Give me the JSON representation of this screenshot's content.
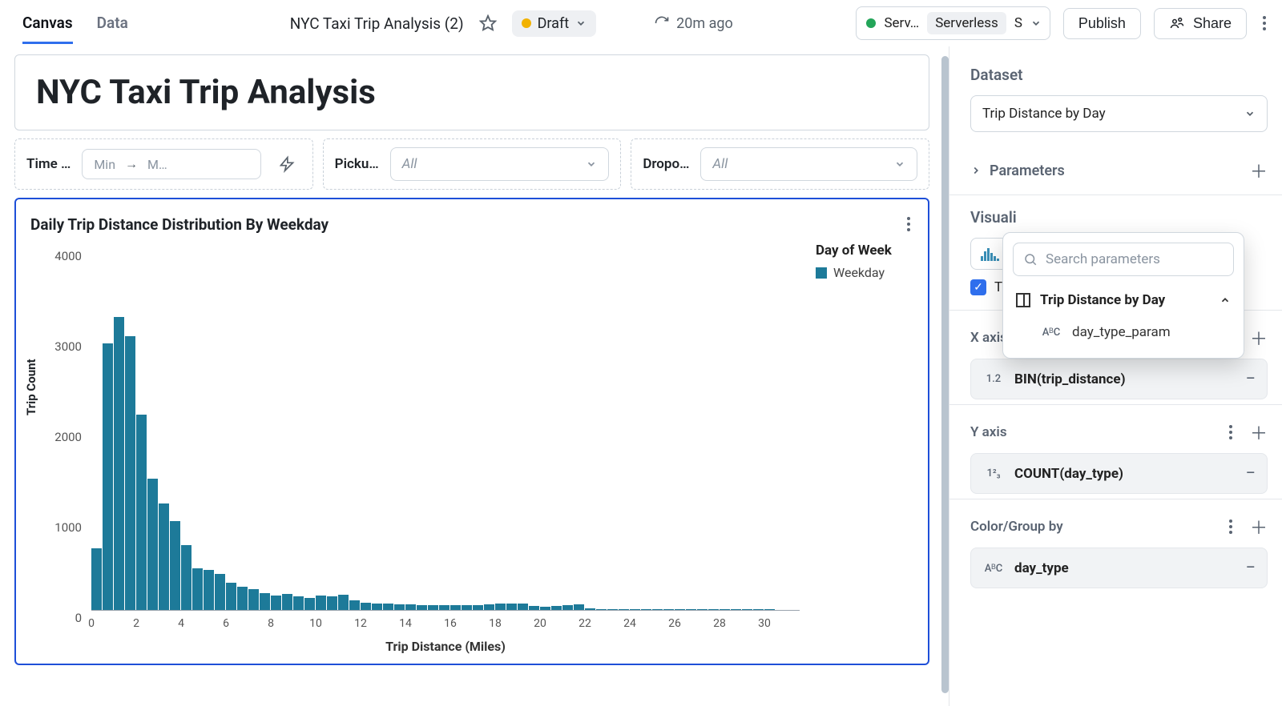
{
  "topbar": {
    "tabs": {
      "canvas": "Canvas",
      "data": "Data"
    },
    "doc_title": "NYC Taxi Trip Analysis (2)",
    "draft_label": "Draft",
    "refresh_ago": "20m ago",
    "env_prefix": "Serv…",
    "env_tag": "Serverless",
    "env_size": "S",
    "publish": "Publish",
    "share": "Share"
  },
  "canvas": {
    "page_title": "NYC Taxi Trip Analysis",
    "filters": {
      "time": {
        "label": "Time …",
        "min": "Min",
        "max": "M…"
      },
      "pickup": {
        "label": "Picku…",
        "value": "All"
      },
      "dropoff": {
        "label": "Dropo…",
        "value": "All"
      }
    },
    "chart": {
      "type": "histogram",
      "title": "Daily Trip Distance Distribution By Weekday",
      "y_label": "Trip Count",
      "x_label": "Trip Distance (Miles)",
      "legend_title": "Day of Week",
      "legend_item": "Weekday",
      "bar_color": "#1d7a99",
      "background_color": "#ffffff",
      "ylim": [
        0,
        4000
      ],
      "y_ticks": [
        0,
        1000,
        2000,
        3000,
        4000
      ],
      "xlim": [
        0,
        30.5
      ],
      "x_tick_step": 2,
      "x_ticks": [
        0,
        2,
        4,
        6,
        8,
        10,
        12,
        14,
        16,
        18,
        20,
        22,
        24,
        26,
        28,
        30
      ],
      "bin_width": 0.5,
      "values": [
        680,
        2950,
        3240,
        3030,
        2160,
        1450,
        1180,
        980,
        720,
        460,
        440,
        400,
        300,
        260,
        230,
        190,
        160,
        175,
        150,
        130,
        160,
        155,
        170,
        110,
        80,
        70,
        70,
        60,
        60,
        55,
        50,
        55,
        50,
        55,
        50,
        65,
        75,
        70,
        75,
        40,
        35,
        40,
        55,
        60,
        15,
        10,
        8,
        8,
        8,
        6,
        5,
        5,
        4,
        4,
        4,
        3,
        3,
        3,
        3,
        2,
        2
      ]
    }
  },
  "sidebar": {
    "dataset_heading": "Dataset",
    "dataset_value": "Trip Distance by Day",
    "parameters_label": "Parameters",
    "visualization_heading": "Visuali",
    "title_checkbox_label": "Titl",
    "x_axis": {
      "label": "X axis",
      "field": "BIN(trip_distance)",
      "type_tag": "1.2"
    },
    "y_axis": {
      "label": "Y axis",
      "field": "COUNT(day_type)",
      "type_tag": "1²₃"
    },
    "color": {
      "label": "Color/Group by",
      "field": "day_type",
      "type_tag": "AᴮC"
    }
  },
  "popover": {
    "search_placeholder": "Search parameters",
    "group": "Trip Distance by Day",
    "item": "day_type_param"
  }
}
